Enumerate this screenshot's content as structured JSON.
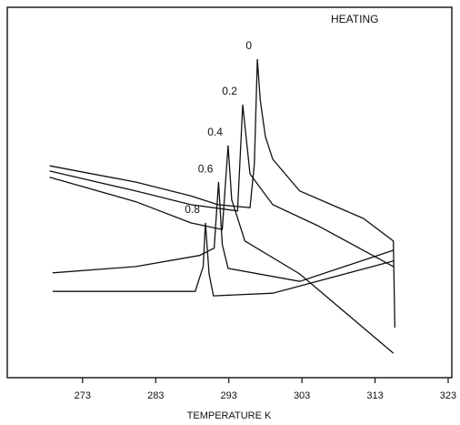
{
  "chart_data": {
    "type": "line",
    "annotation": "HEATING",
    "x_label": "TEMPERATURE K",
    "xlim": [
      262.7,
      323.5
    ],
    "ylim": [
      0,
      100
    ],
    "xticks": [
      273,
      283,
      293,
      303,
      313,
      323
    ],
    "series": [
      {
        "name": "0",
        "color": "#111111",
        "x": [
          268.5,
          280.3,
          287.8,
          291.5,
          295.9,
          296.5,
          296.9,
          297.3,
          298.0,
          299.0,
          302.7,
          311.4,
          315.5,
          315.7
        ],
        "values": [
          57.2,
          52.8,
          49.1,
          46.7,
          45.9,
          57.7,
          86.0,
          74.9,
          65.1,
          59.0,
          50.4,
          43.0,
          36.9,
          13.5
        ]
      },
      {
        "name": "0.2",
        "color": "#111111",
        "x": [
          268.5,
          280.3,
          287.8,
          294.2,
          294.9,
          295.9,
          299.0,
          305.2,
          315.5
        ],
        "values": [
          55.8,
          50.4,
          46.7,
          45.0,
          73.7,
          55.0,
          46.7,
          41.0,
          30.0
        ]
      },
      {
        "name": "0.4",
        "color": "#111111",
        "x": [
          268.5,
          280.3,
          287.8,
          292.1,
          292.9,
          293.4,
          295.2,
          302.7,
          315.5
        ],
        "values": [
          54.1,
          47.5,
          41.8,
          40.0,
          62.7,
          48.0,
          36.9,
          28.0,
          6.6
        ]
      },
      {
        "name": "0.6",
        "color": "#111111",
        "x": [
          268.9,
          280.3,
          289.0,
          291.0,
          291.6,
          292.1,
          292.9,
          302.7,
          315.5
        ],
        "values": [
          28.3,
          30.0,
          33.0,
          35.0,
          52.8,
          36.0,
          29.5,
          26.0,
          34.4
        ]
      },
      {
        "name": "0.8",
        "color": "#111111",
        "x": [
          268.9,
          280.3,
          288.4,
          289.5,
          289.8,
          290.3,
          290.9,
          299.0,
          315.5
        ],
        "values": [
          23.3,
          23.3,
          23.3,
          30.0,
          41.8,
          28.0,
          22.1,
          22.8,
          31.5
        ]
      }
    ]
  }
}
